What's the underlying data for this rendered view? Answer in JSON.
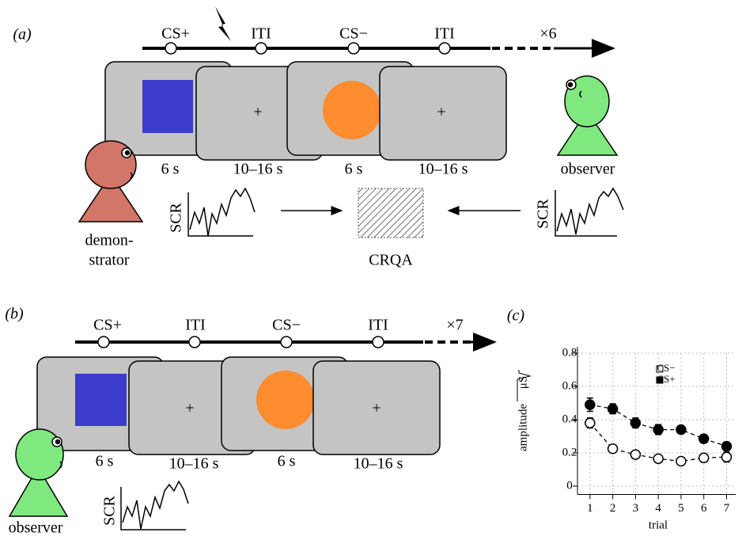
{
  "panel_a": {
    "label": "(a)",
    "timeline": [
      "CS+",
      "ITI",
      "CS−",
      "ITI"
    ],
    "repeat": "×6",
    "durations": [
      "6 s",
      "10–16 s",
      "6 s",
      "10–16 s"
    ],
    "demonstrator": [
      "demon-",
      "strator"
    ],
    "observer": "observer",
    "scr_left": "SCR",
    "scr_right": "SCR",
    "crqa": "CRQA"
  },
  "panel_b": {
    "label": "(b)",
    "timeline": [
      "CS+",
      "ITI",
      "CS−",
      "ITI"
    ],
    "repeat": "×7",
    "durations": [
      "6 s",
      "10–16 s",
      "6 s",
      "10–16 s"
    ],
    "observer": "observer",
    "scr": "SCR"
  },
  "chart_data": {
    "type": "line",
    "panel_label": "(c)",
    "y_label": "amplitude",
    "y_unit": "μS",
    "x_label": "trial",
    "x": [
      1,
      2,
      3,
      4,
      5,
      6,
      7
    ],
    "xlim": [
      0.45,
      7.4
    ],
    "xticks": [
      1,
      2,
      3,
      4,
      5,
      6,
      7
    ],
    "ylim": [
      -0.05,
      0.8
    ],
    "yticks": [
      0,
      0.2,
      0.4,
      0.6,
      0.8
    ],
    "grid": true,
    "legend": "upper right",
    "series": [
      {
        "name": "CS−",
        "color": "#000000",
        "filled": false,
        "values": [
          0.38,
          0.225,
          0.19,
          0.165,
          0.15,
          0.17,
          0.175
        ],
        "errors": [
          0.03,
          0.02,
          0.02,
          0.02,
          0.02,
          0.02,
          0.03
        ]
      },
      {
        "name": "CS+",
        "color": "#000000",
        "filled": true,
        "values": [
          0.49,
          0.465,
          0.38,
          0.34,
          0.34,
          0.285,
          0.24
        ],
        "errors": [
          0.04,
          0.03,
          0.03,
          0.03,
          0.02,
          0.025,
          0.025
        ]
      }
    ]
  }
}
